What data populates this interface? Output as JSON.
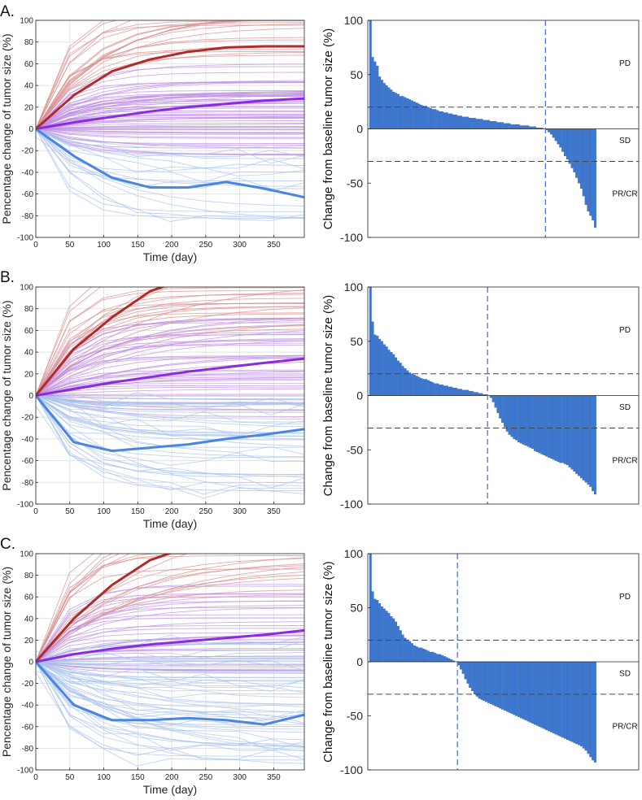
{
  "colors": {
    "pd": "#b22a2a",
    "pd_light": "#d98c8c",
    "sd": "#8a2be2",
    "sd_light": "#bf8fe6",
    "pr": "#4a86e0",
    "pr_light": "#a9c4ee",
    "bar": "#3a78d4",
    "bar_edge": "#1e4f9a",
    "grid": "#e3e3e3",
    "axis": "#262626",
    "ref": "#444444",
    "vline": "#5572d8"
  },
  "chart_data": [
    {
      "id": "A",
      "label": "A.",
      "left": {
        "type": "line",
        "xlabel": "Time (day)",
        "ylabel": "Pencentage change of tumor size (%)",
        "xlim": [
          0,
          395
        ],
        "ylim": [
          -100,
          100
        ],
        "xticks": [
          0,
          50,
          100,
          150,
          200,
          250,
          300,
          350
        ],
        "yticks": [
          -100,
          -80,
          -60,
          -40,
          -20,
          0,
          20,
          40,
          60,
          80,
          100
        ],
        "grid": true,
        "mean_series": [
          {
            "name": "PD",
            "x": [
              0,
              56,
              112,
              168,
              224,
              280,
              336,
              395
            ],
            "y": [
              0,
              31,
              53,
              64,
              71,
              75,
              76,
              76
            ]
          },
          {
            "name": "SD",
            "x": [
              0,
              56,
              112,
              168,
              224,
              280,
              336,
              395
            ],
            "y": [
              0,
              6,
              11,
              16,
              20,
              23,
              26,
              28
            ]
          },
          {
            "name": "PR/CR",
            "x": [
              0,
              56,
              112,
              168,
              224,
              280,
              336,
              395
            ],
            "y": [
              0,
              -25,
              -45,
              -54,
              -54,
              -49,
              -55,
              -63
            ]
          }
        ],
        "individual_counts": {
          "PD": 20,
          "SD": 60,
          "PR/CR": 18
        },
        "individual_finals": {
          "PD": [
            62,
            115
          ],
          "SD": [
            -25,
            60
          ],
          "PR/CR": [
            -90,
            -10
          ]
        }
      },
      "right": {
        "type": "bar",
        "ylabel": "Change from baseline tumor size (%)",
        "ylim": [
          -100,
          100
        ],
        "yticks": [
          -100,
          -50,
          0,
          50,
          100
        ],
        "ref_lines": [
          20,
          -30
        ],
        "regions": [
          "PD",
          "SD",
          "PR/CR"
        ],
        "n_bars": 98,
        "split_index": 76,
        "values": [
          100,
          66,
          62,
          58,
          48,
          45,
          42,
          40,
          38,
          36,
          34,
          33,
          32,
          30,
          30,
          29,
          28,
          27,
          26,
          25,
          24,
          23,
          22,
          21,
          21,
          20,
          19,
          18,
          18,
          17,
          16,
          16,
          15,
          15,
          14,
          14,
          13,
          13,
          12,
          12,
          11,
          11,
          11,
          10,
          10,
          10,
          9,
          9,
          9,
          8,
          8,
          8,
          7,
          7,
          7,
          6,
          6,
          6,
          5,
          5,
          5,
          4,
          4,
          4,
          4,
          3,
          3,
          3,
          3,
          2,
          2,
          2,
          1,
          1,
          1,
          0,
          -1,
          -3,
          -5,
          -8,
          -11,
          -14,
          -17,
          -21,
          -25,
          -28,
          -32,
          -36,
          -40,
          -45,
          -50,
          -55,
          -62,
          -70,
          -76,
          -80,
          -84,
          -91
        ]
      }
    },
    {
      "id": "B",
      "label": "B.",
      "left": {
        "type": "line",
        "xlabel": "Time (day)",
        "ylabel": "Pencentage change of tumor size (%)",
        "xlim": [
          0,
          395
        ],
        "ylim": [
          -100,
          100
        ],
        "xticks": [
          0,
          50,
          100,
          150,
          200,
          250,
          300,
          350
        ],
        "yticks": [
          -100,
          -80,
          -60,
          -40,
          -20,
          0,
          20,
          40,
          60,
          80,
          100
        ],
        "grid": true,
        "mean_series": [
          {
            "name": "PD",
            "x": [
              0,
              56,
              112,
              168,
              190
            ],
            "y": [
              0,
              43,
              72,
              96,
              101
            ]
          },
          {
            "name": "SD",
            "x": [
              0,
              56,
              112,
              168,
              224,
              280,
              336,
              395
            ],
            "y": [
              0,
              6,
              12,
              17,
              22,
              26,
              30,
              34
            ]
          },
          {
            "name": "PR/CR",
            "x": [
              0,
              56,
              112,
              168,
              224,
              280,
              336,
              395
            ],
            "y": [
              0,
              -43,
              -51,
              -48,
              -45,
              -40,
              -36,
              -31
            ]
          }
        ],
        "individual_counts": {
          "PD": 22,
          "SD": 45,
          "PR/CR": 40
        },
        "individual_finals": {
          "PD": [
            60,
            130
          ],
          "SD": [
            -20,
            75
          ],
          "PR/CR": [
            -92,
            0
          ]
        }
      },
      "right": {
        "type": "bar",
        "ylabel": "Change from baseline tumor size (%)",
        "ylim": [
          -100,
          100
        ],
        "yticks": [
          -100,
          -50,
          0,
          50,
          100
        ],
        "ref_lines": [
          20,
          -30
        ],
        "regions": [
          "PD",
          "SD",
          "PR/CR"
        ],
        "n_bars": 98,
        "split_index": 51,
        "values": [
          100,
          68,
          56,
          55,
          52,
          50,
          47,
          45,
          42,
          40,
          38,
          35,
          32,
          30,
          27,
          25,
          23,
          21,
          20,
          19,
          18,
          17,
          16,
          15,
          15,
          14,
          13,
          12,
          11,
          11,
          10,
          10,
          9,
          9,
          8,
          8,
          7,
          7,
          6,
          6,
          5,
          5,
          5,
          4,
          4,
          3,
          3,
          2,
          2,
          1,
          1,
          0,
          -2,
          -6,
          -11,
          -16,
          -21,
          -25,
          -29,
          -33,
          -36,
          -38,
          -40,
          -41,
          -43,
          -44,
          -45,
          -46,
          -47,
          -48,
          -49,
          -51,
          -52,
          -53,
          -54,
          -55,
          -56,
          -57,
          -58,
          -59,
          -60,
          -61,
          -62,
          -62,
          -63,
          -64,
          -66,
          -68,
          -70,
          -72,
          -74,
          -76,
          -78,
          -80,
          -82,
          -84,
          -88,
          -91
        ]
      }
    },
    {
      "id": "C",
      "label": "C.",
      "left": {
        "type": "line",
        "xlabel": "Time (day)",
        "ylabel": "Pencentage change of tumor size (%)",
        "xlim": [
          0,
          395
        ],
        "ylim": [
          -100,
          100
        ],
        "xticks": [
          0,
          50,
          100,
          150,
          200,
          250,
          300,
          350
        ],
        "yticks": [
          -100,
          -80,
          -60,
          -40,
          -20,
          0,
          20,
          40,
          60,
          80,
          100
        ],
        "grid": true,
        "mean_series": [
          {
            "name": "PD",
            "x": [
              0,
              56,
              112,
              168,
              200
            ],
            "y": [
              0,
              40,
              71,
              94,
              101
            ]
          },
          {
            "name": "SD",
            "x": [
              0,
              56,
              112,
              168,
              224,
              280,
              336,
              395
            ],
            "y": [
              0,
              7,
              12,
              16,
              19,
              22,
              25,
              29
            ]
          },
          {
            "name": "PR/CR",
            "x": [
              0,
              56,
              112,
              168,
              224,
              280,
              336,
              395
            ],
            "y": [
              0,
              -40,
              -54,
              -54,
              -52,
              -54,
              -58,
              -49
            ]
          }
        ],
        "individual_counts": {
          "PD": 20,
          "SD": 35,
          "PR/CR": 55
        },
        "individual_finals": {
          "PD": [
            60,
            130
          ],
          "SD": [
            -15,
            75
          ],
          "PR/CR": [
            -95,
            20
          ]
        }
      },
      "right": {
        "type": "bar",
        "ylabel": "Change from baseline tumor size (%)",
        "ylim": [
          -100,
          100
        ],
        "yticks": [
          -100,
          -50,
          0,
          50,
          100
        ],
        "ref_lines": [
          20,
          -30
        ],
        "regions": [
          "PD",
          "SD",
          "PR/CR"
        ],
        "n_bars": 98,
        "split_index": 38,
        "values": [
          100,
          65,
          58,
          57,
          54,
          51,
          49,
          47,
          45,
          42,
          40,
          37,
          33,
          29,
          25,
          22,
          20,
          19,
          17,
          15,
          14,
          13,
          13,
          12,
          11,
          10,
          9,
          9,
          8,
          7,
          7,
          6,
          5,
          4,
          3,
          2,
          1,
          0,
          -3,
          -7,
          -11,
          -16,
          -20,
          -24,
          -27,
          -30,
          -32,
          -34,
          -35,
          -36,
          -37,
          -38,
          -39,
          -40,
          -41,
          -42,
          -43,
          -44,
          -45,
          -46,
          -47,
          -48,
          -49,
          -50,
          -51,
          -52,
          -53,
          -54,
          -55,
          -56,
          -57,
          -58,
          -59,
          -60,
          -61,
          -62,
          -63,
          -64,
          -65,
          -66,
          -67,
          -68,
          -69,
          -70,
          -71,
          -72,
          -73,
          -74,
          -75,
          -76,
          -77,
          -78,
          -80,
          -82,
          -85,
          -88,
          -91,
          -93
        ]
      }
    }
  ]
}
